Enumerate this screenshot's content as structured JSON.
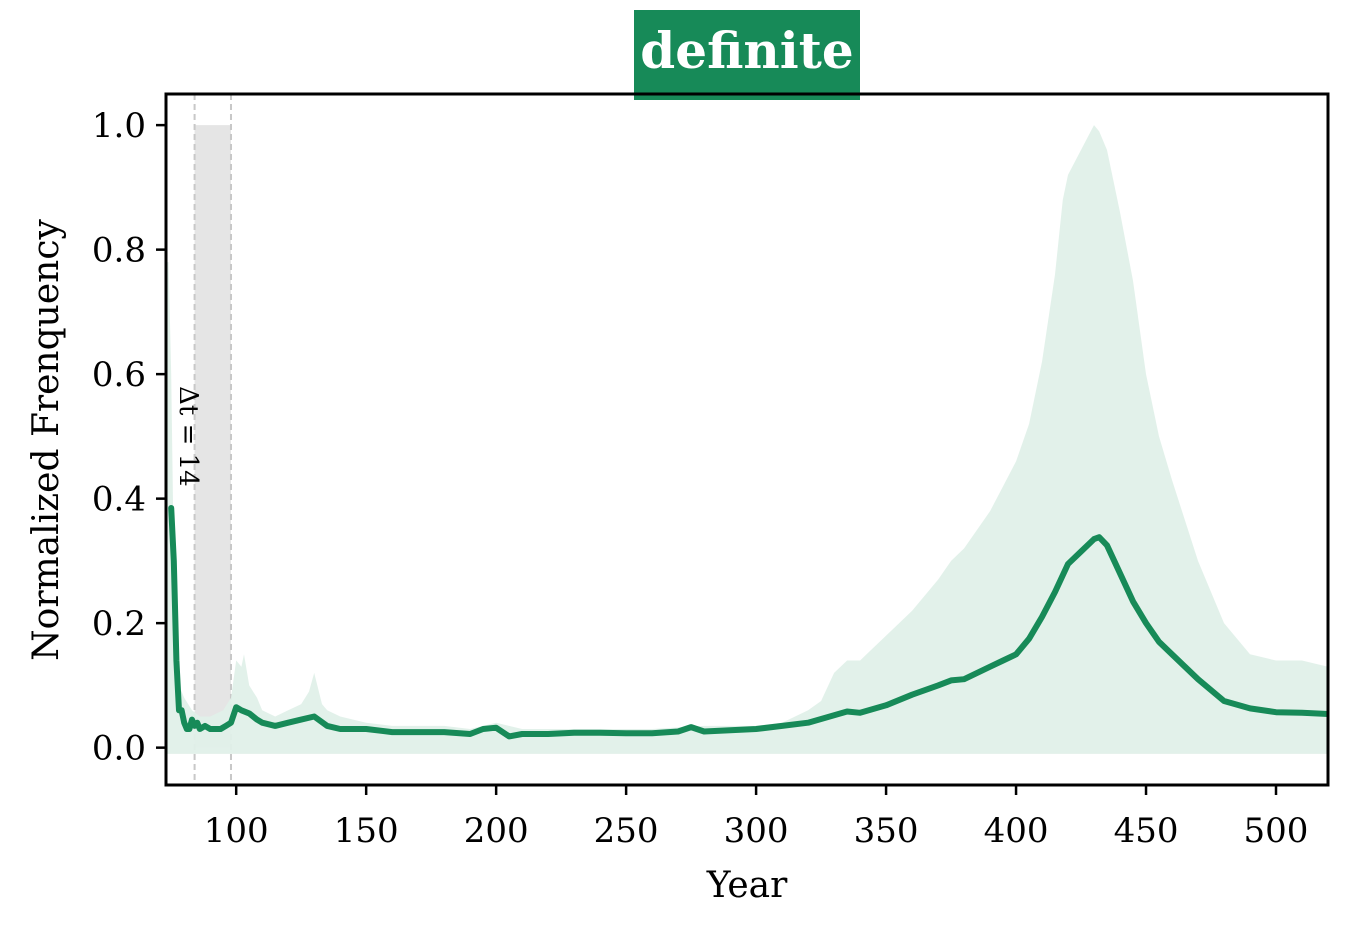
{
  "chart_data": {
    "type": "line",
    "title": "definite",
    "xlabel": "Year",
    "ylabel": "Normalized Frenquency",
    "xlim": [
      73,
      520
    ],
    "ylim": [
      -0.06,
      1.05
    ],
    "xticks": [
      100,
      150,
      200,
      250,
      300,
      350,
      400,
      450,
      500
    ],
    "yticks": [
      0.0,
      0.2,
      0.4,
      0.6,
      0.8,
      1.0
    ],
    "grid": false,
    "colors": {
      "line": "#178a58",
      "band": "#e0f0e9",
      "highlight": "#e5e5e5",
      "dashed": "#c8c8c8",
      "title_bg": "#178a58"
    },
    "highlight": {
      "x_start": 84,
      "x_end": 98,
      "y_top": 1.0,
      "label": "Δt = 14"
    },
    "series": [
      {
        "x": [
          75,
          76,
          77,
          78,
          79,
          80,
          81,
          82,
          83,
          84,
          85,
          86,
          88,
          90,
          92,
          94,
          96,
          98,
          100,
          102,
          105,
          108,
          110,
          115,
          120,
          125,
          130,
          135,
          140,
          145,
          150,
          160,
          170,
          180,
          190,
          195,
          200,
          205,
          210,
          220,
          230,
          240,
          250,
          260,
          270,
          275,
          280,
          290,
          300,
          310,
          320,
          330,
          335,
          340,
          350,
          360,
          370,
          375,
          380,
          390,
          395,
          400,
          405,
          410,
          415,
          420,
          425,
          430,
          432,
          435,
          440,
          445,
          450,
          455,
          460,
          470,
          480,
          490,
          500,
          510,
          520
        ],
        "y": [
          0.385,
          0.3,
          0.14,
          0.06,
          0.06,
          0.04,
          0.03,
          0.03,
          0.045,
          0.035,
          0.04,
          0.03,
          0.035,
          0.03,
          0.03,
          0.03,
          0.035,
          0.04,
          0.065,
          0.06,
          0.055,
          0.045,
          0.04,
          0.035,
          0.04,
          0.045,
          0.05,
          0.035,
          0.03,
          0.03,
          0.03,
          0.025,
          0.025,
          0.025,
          0.022,
          0.03,
          0.032,
          0.018,
          0.022,
          0.022,
          0.024,
          0.024,
          0.023,
          0.023,
          0.026,
          0.033,
          0.026,
          0.028,
          0.03,
          0.035,
          0.04,
          0.052,
          0.058,
          0.056,
          0.068,
          0.085,
          0.1,
          0.108,
          0.11,
          0.13,
          0.14,
          0.15,
          0.175,
          0.21,
          0.25,
          0.295,
          0.315,
          0.335,
          0.338,
          0.325,
          0.28,
          0.235,
          0.2,
          0.17,
          0.15,
          0.11,
          0.075,
          0.063,
          0.057,
          0.056,
          0.054
        ]
      },
      {
        "x": [
          73,
          74,
          75,
          76,
          77,
          78,
          80,
          83,
          86,
          90,
          95,
          98,
          100,
          102,
          103,
          105,
          108,
          110,
          115,
          120,
          125,
          128,
          130,
          133,
          135,
          140,
          150,
          160,
          170,
          180,
          190,
          200,
          210,
          220,
          240,
          260,
          280,
          300,
          310,
          320,
          325,
          330,
          335,
          340,
          345,
          350,
          360,
          370,
          375,
          380,
          390,
          395,
          400,
          405,
          410,
          415,
          418,
          420,
          425,
          430,
          432,
          435,
          440,
          445,
          450,
          455,
          460,
          470,
          480,
          490,
          500,
          510,
          520
        ],
        "upper": [
          0.78,
          0.78,
          0.6,
          0.3,
          0.12,
          0.1,
          0.08,
          0.06,
          0.05,
          0.05,
          0.06,
          0.08,
          0.14,
          0.13,
          0.15,
          0.1,
          0.08,
          0.06,
          0.05,
          0.06,
          0.07,
          0.09,
          0.12,
          0.07,
          0.06,
          0.05,
          0.04,
          0.035,
          0.035,
          0.035,
          0.03,
          0.04,
          0.03,
          0.03,
          0.03,
          0.03,
          0.035,
          0.035,
          0.04,
          0.06,
          0.075,
          0.12,
          0.14,
          0.14,
          0.16,
          0.18,
          0.22,
          0.27,
          0.3,
          0.32,
          0.38,
          0.42,
          0.46,
          0.52,
          0.62,
          0.76,
          0.88,
          0.92,
          0.96,
          1.0,
          0.99,
          0.96,
          0.86,
          0.75,
          0.6,
          0.5,
          0.43,
          0.3,
          0.2,
          0.15,
          0.14,
          0.14,
          0.13
        ],
        "lower": [
          -0.01,
          -0.01,
          -0.01,
          -0.01,
          -0.01,
          -0.01,
          -0.01,
          -0.01,
          -0.01,
          -0.01,
          -0.01,
          -0.01,
          -0.01,
          -0.01,
          -0.01,
          -0.01,
          -0.01,
          -0.01,
          -0.01,
          -0.01,
          -0.01,
          -0.01,
          -0.01,
          -0.01,
          -0.01,
          -0.01,
          -0.01,
          -0.01,
          -0.01,
          -0.01,
          -0.01,
          -0.01,
          -0.01,
          -0.01,
          -0.01,
          -0.01,
          -0.01,
          -0.01,
          -0.01,
          -0.01,
          -0.01,
          -0.01,
          -0.01,
          -0.01,
          -0.01,
          -0.01,
          -0.01,
          -0.01,
          -0.01,
          -0.01,
          -0.01,
          -0.01,
          -0.01,
          -0.01,
          -0.01,
          -0.01,
          -0.01,
          -0.01,
          -0.01,
          -0.01,
          -0.01,
          -0.01,
          -0.01,
          -0.01,
          -0.01,
          -0.01,
          -0.01,
          -0.01,
          -0.01,
          -0.01,
          -0.01,
          -0.01,
          -0.01
        ]
      }
    ]
  }
}
